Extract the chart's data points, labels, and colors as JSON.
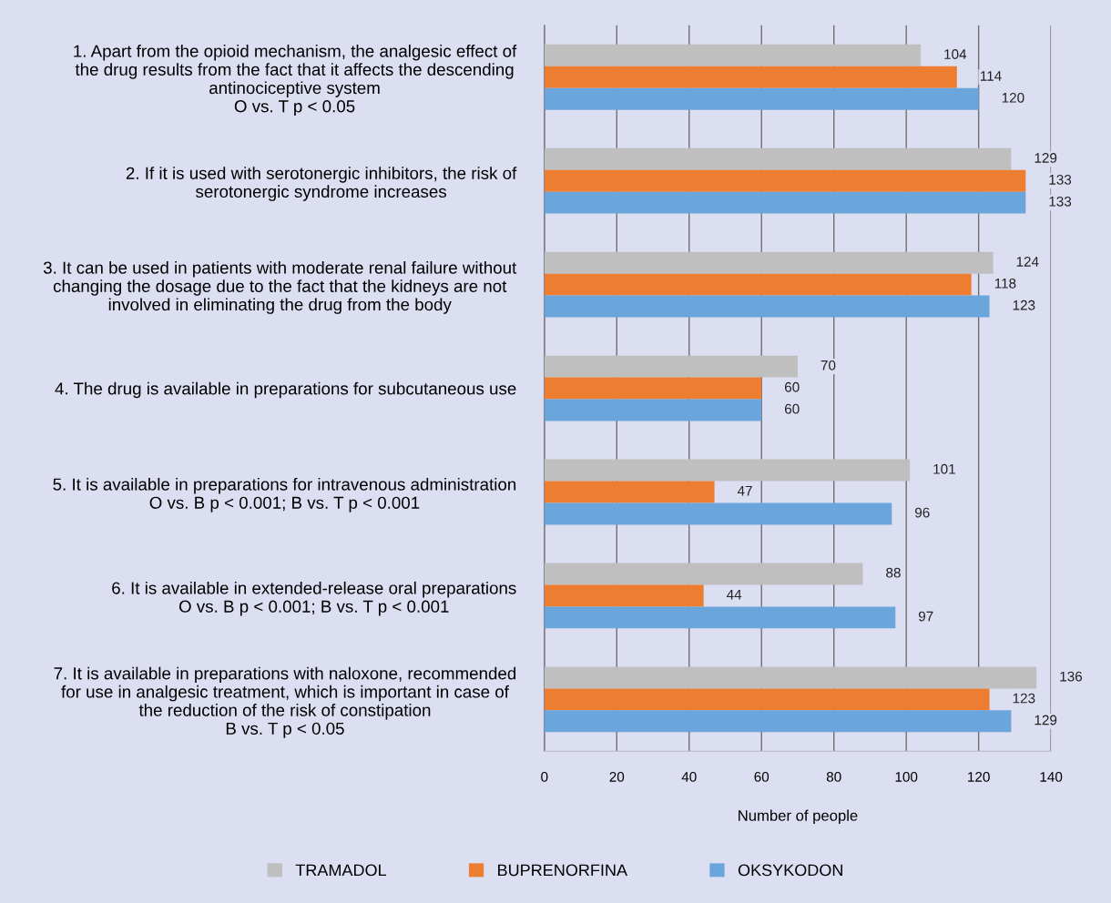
{
  "chart_data": {
    "type": "bar",
    "orientation": "horizontal",
    "categories": [
      "1. Apart from the opioid mechanism, the analgesic effect of\nthe drug results from the fact that it affects the descending\nantinociceptive system\nO vs. T p < 0.05",
      "2. If it is used with serotonergic inhibitors, the risk of\nserotonergic syndrome increases",
      "3. It can be used in patients with moderate renal failure without\nchanging the dosage due to the fact that the kidneys are not\ninvolved in eliminating the drug from the body",
      "4. The drug is available in preparations for subcutaneous use",
      "5. It is available in preparations for intravenous administration\nO vs. B p < 0.001; B vs. T p < 0.001",
      "6. It is available in extended-release oral preparations\nO vs. B p < 0.001; B vs. T p < 0.001",
      "7. It is available in preparations with naloxone, recommended\nfor use in analgesic treatment, which is important in case of\nthe reduction of the risk of constipation\nB vs. T p < 0.05"
    ],
    "series": [
      {
        "name": "TRAMADOL",
        "color": "#bfbfbf",
        "values": [
          104,
          129,
          124,
          70,
          101,
          88,
          136
        ]
      },
      {
        "name": "BUPRENORFINA",
        "color": "#ed7d31",
        "values": [
          114,
          133,
          118,
          60,
          47,
          44,
          123
        ]
      },
      {
        "name": "OKSYKODON",
        "color": "#6aa5dc",
        "values": [
          120,
          133,
          123,
          60,
          96,
          97,
          129
        ]
      }
    ],
    "xlim": [
      0,
      140
    ],
    "xticks": [
      0,
      20,
      40,
      60,
      80,
      100,
      120,
      140
    ],
    "xlabel": "Number of people",
    "grid": "x",
    "legend": "bottom",
    "data_labels": true
  }
}
